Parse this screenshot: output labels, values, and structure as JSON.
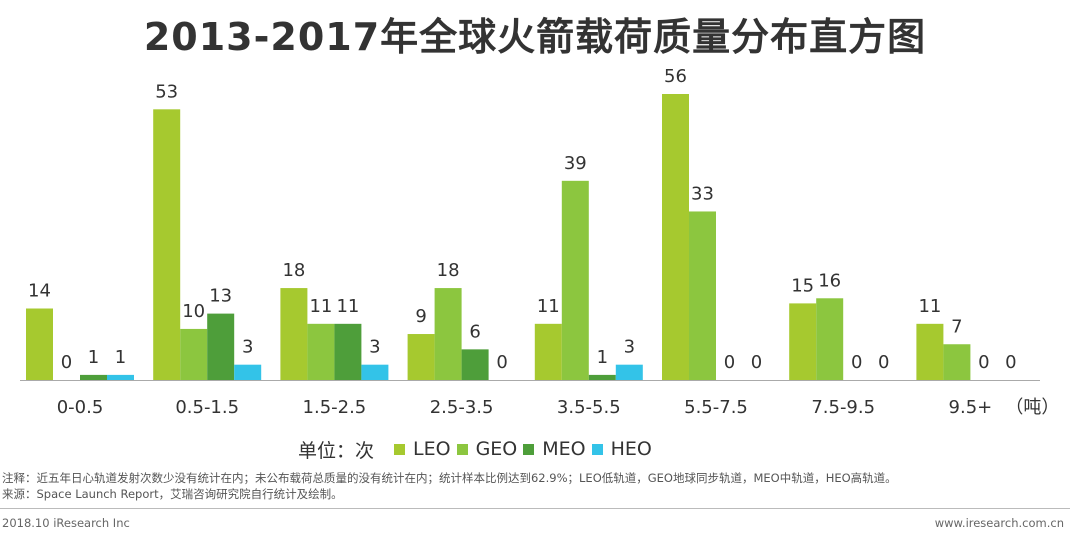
{
  "title": "2013-2017年全球火箭载荷质量分布直方图",
  "colors": {
    "LEO": "#a6c92f",
    "GEO": "#8cc63f",
    "MEO": "#4e9e3a",
    "HEO": "#33c3e8",
    "axis": "#aaaaaa",
    "text": "#333333"
  },
  "chart_data": {
    "type": "bar",
    "title": "2013-2017年全球火箭载荷质量分布直方图",
    "categories": [
      "0-0.5",
      "0.5-1.5",
      "1.5-2.5",
      "2.5-3.5",
      "3.5-5.5",
      "5.5-7.5",
      "7.5-9.5",
      "9.5+"
    ],
    "x_unit": "（吨）",
    "unit_label": "单位：次",
    "series": [
      {
        "name": "LEO",
        "values": [
          14,
          53,
          18,
          9,
          11,
          56,
          15,
          11
        ]
      },
      {
        "name": "GEO",
        "values": [
          0,
          10,
          11,
          18,
          39,
          33,
          16,
          7
        ]
      },
      {
        "name": "MEO",
        "values": [
          1,
          13,
          11,
          6,
          1,
          0,
          0,
          0
        ]
      },
      {
        "name": "HEO",
        "values": [
          1,
          3,
          3,
          0,
          3,
          0,
          0,
          0
        ]
      }
    ],
    "ylim": [
      0,
      60
    ],
    "grid": false,
    "legend": "bottom"
  },
  "notes": {
    "line1": "注释：近五年日心轨道发射次数少没有统计在内；未公布载荷总质量的没有统计在内；统计样本比例达到62.9%；LEO低轨道，GEO地球同步轨道，MEO中轨道，HEO高轨道。",
    "line2": "来源：Space Launch Report，艾瑞咨询研究院自行统计及绘制。"
  },
  "footer": {
    "left": "2018.10 iResearch Inc",
    "right": "www.iresearch.com.cn"
  }
}
